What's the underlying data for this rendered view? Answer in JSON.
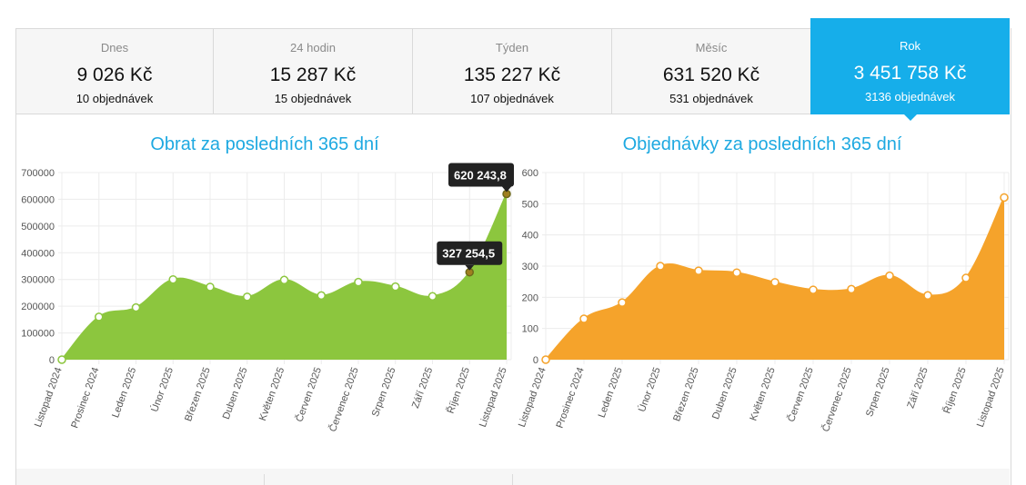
{
  "tabs": [
    {
      "label": "Dnes",
      "amount": "9 026 Kč",
      "orders": "10 objednávek",
      "active": false
    },
    {
      "label": "24 hodin",
      "amount": "15 287 Kč",
      "orders": "15 objednávek",
      "active": false
    },
    {
      "label": "Týden",
      "amount": "135 227 Kč",
      "orders": "107 objednávek",
      "active": false
    },
    {
      "label": "Měsíc",
      "amount": "631 520 Kč",
      "orders": "531 objednávek",
      "active": false
    },
    {
      "label": "Rok",
      "amount": "3 451 758 Kč",
      "orders": "3136 objednávek",
      "active": true
    }
  ],
  "chart_data": [
    {
      "type": "area",
      "title": "Obrat za posledních 365 dní",
      "color": "#8cc63e",
      "categories": [
        "Listopad 2024",
        "Prosinec 2024",
        "Leden 2025",
        "Únor 2025",
        "Březen 2025",
        "Duben 2025",
        "Květen 2025",
        "Červen 2025",
        "Červenec 2025",
        "Srpen 2025",
        "Září 2025",
        "Říjen 2025",
        "Listopad 2025"
      ],
      "values": [
        0,
        160000,
        195000,
        300000,
        272000,
        235000,
        298000,
        240000,
        290000,
        273000,
        237000,
        327254.5,
        620243.8
      ],
      "ylim": [
        0,
        700000
      ],
      "yticks": [
        "0",
        "100000",
        "200000",
        "300000",
        "400000",
        "500000",
        "600000",
        "700000"
      ],
      "tooltips": [
        {
          "index": 11,
          "text": "327 254,5"
        },
        {
          "index": 12,
          "text": "620 243,8"
        }
      ],
      "grid": true
    },
    {
      "type": "area",
      "title": "Objednávky za posledních 365 dní",
      "color": "#f5a32b",
      "categories": [
        "Listopad 2024",
        "Prosinec 2024",
        "Leden 2025",
        "Únor 2025",
        "Březen 2025",
        "Duben 2025",
        "Květen 2025",
        "Červen 2025",
        "Červenec 2025",
        "Srpen 2025",
        "Září 2025",
        "Říjen 2025",
        "Listopad 2025"
      ],
      "values": [
        0,
        131,
        183,
        300,
        285,
        279,
        248,
        224,
        226,
        269,
        206,
        262,
        520
      ],
      "ylim": [
        0,
        600
      ],
      "yticks": [
        "0",
        "100",
        "200",
        "300",
        "400",
        "500",
        "600"
      ],
      "tooltips": [],
      "grid": true
    }
  ]
}
